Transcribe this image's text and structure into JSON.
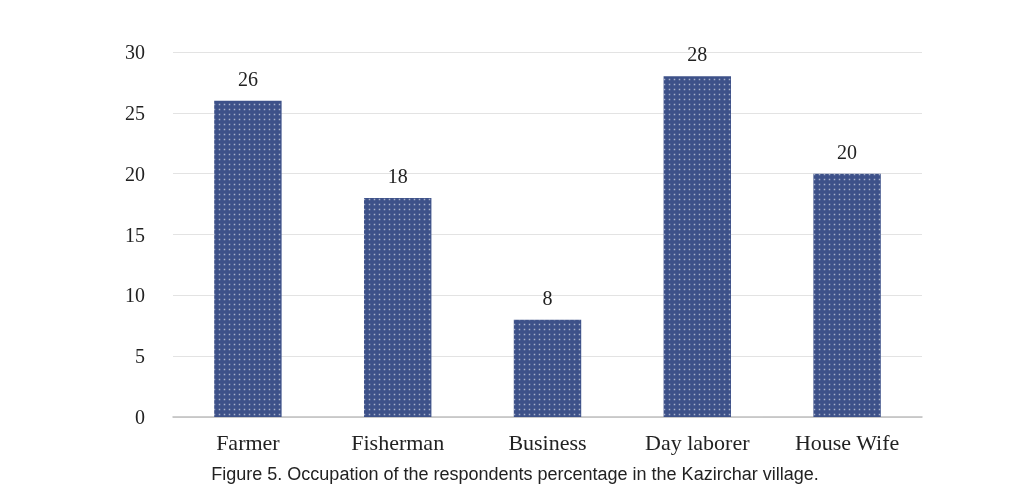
{
  "chart_data": {
    "type": "bar",
    "categories": [
      "Farmer",
      "Fisherman",
      "Business",
      "Day laborer",
      "House Wife"
    ],
    "values": [
      26,
      18,
      8,
      28,
      20
    ],
    "color": "#3d5189",
    "ylim": [
      0,
      30
    ],
    "yticks": [
      0,
      5,
      10,
      15,
      20,
      25,
      30
    ],
    "grid": "y",
    "data_labels": true,
    "annotations": [
      "Figure 5. Occupation of the respondents percentage in the Kazirchar village."
    ]
  }
}
